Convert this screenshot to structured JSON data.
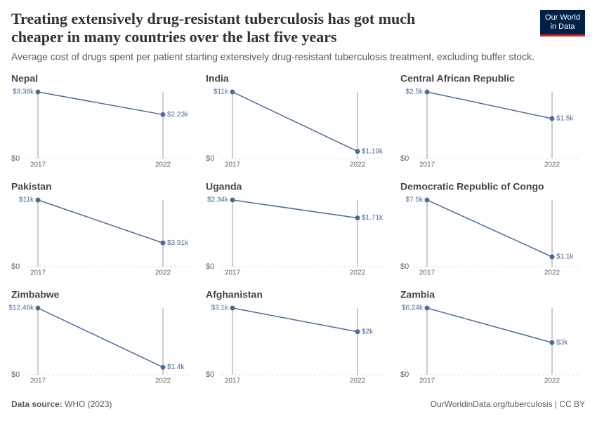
{
  "header": {
    "title_line1": "Treating extensively drug-resistant tuberculosis has got much",
    "title_line2": "cheaper in many countries over the last five years",
    "subtitle": "Average cost of drugs spent per patient starting extensively drug-resistant tuberculosis treatment, excluding buffer stock.",
    "logo_line1": "Our World",
    "logo_line2": "in Data"
  },
  "chart_data": [
    {
      "type": "slope",
      "title": "Nepal",
      "x": [
        2017,
        2022
      ],
      "values": [
        3380,
        2230
      ],
      "value_labels": [
        "$3.38k",
        "$2.23k"
      ],
      "xlim": [
        2017,
        2022
      ],
      "xticks": [
        2017,
        2022
      ],
      "ylim": [
        0,
        3380
      ],
      "yticks": [
        {
          "value": 0,
          "label": "$0"
        }
      ],
      "color": "#4c6a9c"
    },
    {
      "type": "slope",
      "title": "India",
      "x": [
        2017,
        2022
      ],
      "values": [
        11000,
        1190
      ],
      "value_labels": [
        "$11k",
        "$1.19k"
      ],
      "xlim": [
        2017,
        2022
      ],
      "xticks": [
        2017,
        2022
      ],
      "ylim": [
        0,
        11000
      ],
      "yticks": [
        {
          "value": 0,
          "label": "$0"
        }
      ],
      "color": "#4c6a9c"
    },
    {
      "type": "slope",
      "title": "Central African Republic",
      "x": [
        2017,
        2022
      ],
      "values": [
        2500,
        1500
      ],
      "value_labels": [
        "$2.5k",
        "$1.5k"
      ],
      "xlim": [
        2017,
        2022
      ],
      "xticks": [
        2017,
        2022
      ],
      "ylim": [
        0,
        2500
      ],
      "yticks": [
        {
          "value": 0,
          "label": "$0"
        }
      ],
      "color": "#4c6a9c"
    },
    {
      "type": "slope",
      "title": "Pakistan",
      "x": [
        2017,
        2022
      ],
      "values": [
        11000,
        3910
      ],
      "value_labels": [
        "$11k",
        "$3.91k"
      ],
      "xlim": [
        2017,
        2022
      ],
      "xticks": [
        2017,
        2022
      ],
      "ylim": [
        0,
        11000
      ],
      "yticks": [
        {
          "value": 0,
          "label": "$0"
        }
      ],
      "color": "#4c6a9c"
    },
    {
      "type": "slope",
      "title": "Uganda",
      "x": [
        2017,
        2022
      ],
      "values": [
        2340,
        1710
      ],
      "value_labels": [
        "$2.34k",
        "$1.71k"
      ],
      "xlim": [
        2017,
        2022
      ],
      "xticks": [
        2017,
        2022
      ],
      "ylim": [
        0,
        2340
      ],
      "yticks": [
        {
          "value": 0,
          "label": "$0"
        }
      ],
      "color": "#4c6a9c"
    },
    {
      "type": "slope",
      "title": "Democratic Republic of Congo",
      "x": [
        2017,
        2022
      ],
      "values": [
        7500,
        1100
      ],
      "value_labels": [
        "$7.5k",
        "$1.1k"
      ],
      "xlim": [
        2017,
        2022
      ],
      "xticks": [
        2017,
        2022
      ],
      "ylim": [
        0,
        7500
      ],
      "yticks": [
        {
          "value": 0,
          "label": "$0"
        }
      ],
      "color": "#4c6a9c"
    },
    {
      "type": "slope",
      "title": "Zimbabwe",
      "x": [
        2017,
        2022
      ],
      "values": [
        12460,
        1400
      ],
      "value_labels": [
        "$12.46k",
        "$1.4k"
      ],
      "xlim": [
        2017,
        2022
      ],
      "xticks": [
        2017,
        2022
      ],
      "ylim": [
        0,
        12460
      ],
      "yticks": [
        {
          "value": 0,
          "label": "$0"
        }
      ],
      "color": "#4c6a9c"
    },
    {
      "type": "slope",
      "title": "Afghanistan",
      "x": [
        2017,
        2022
      ],
      "values": [
        3100,
        2000
      ],
      "value_labels": [
        "$3.1k",
        "$2k"
      ],
      "xlim": [
        2017,
        2022
      ],
      "xticks": [
        2017,
        2022
      ],
      "ylim": [
        0,
        3100
      ],
      "yticks": [
        {
          "value": 0,
          "label": "$0"
        }
      ],
      "color": "#4c6a9c"
    },
    {
      "type": "slope",
      "title": "Zambia",
      "x": [
        2017,
        2022
      ],
      "values": [
        6240,
        3000
      ],
      "value_labels": [
        "$6.24k",
        "$3k"
      ],
      "xlim": [
        2017,
        2022
      ],
      "xticks": [
        2017,
        2022
      ],
      "ylim": [
        0,
        6240
      ],
      "yticks": [
        {
          "value": 0,
          "label": "$0"
        }
      ],
      "color": "#4c6a9c"
    }
  ],
  "footer": {
    "source_label": "Data source:",
    "source": "WHO (2023)",
    "url": "OurWorldinData.org/tuberculosis | CC BY"
  }
}
